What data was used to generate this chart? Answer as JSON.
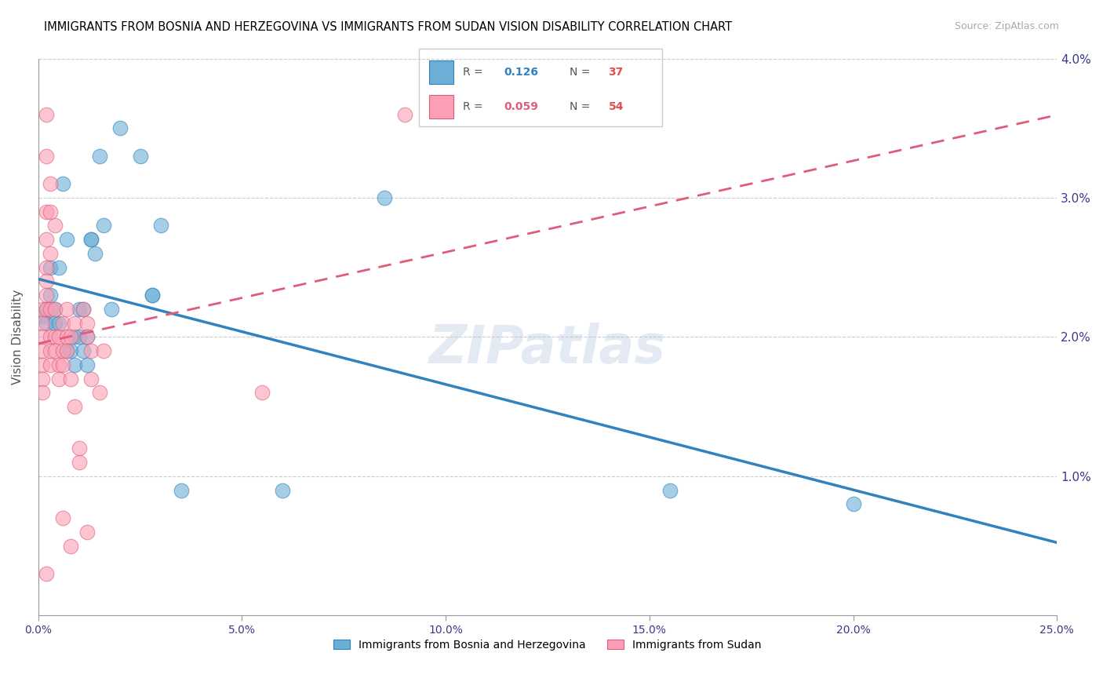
{
  "title": "IMMIGRANTS FROM BOSNIA AND HERZEGOVINA VS IMMIGRANTS FROM SUDAN VISION DISABILITY CORRELATION CHART",
  "source": "Source: ZipAtlas.com",
  "xlabel_bottom": "",
  "ylabel": "Vision Disability",
  "x_min": 0.0,
  "x_max": 0.25,
  "y_min": 0.0,
  "y_max": 0.04,
  "x_ticks": [
    0.0,
    0.05,
    0.1,
    0.15,
    0.2,
    0.25
  ],
  "x_tick_labels": [
    "0.0%",
    "5.0%",
    "10.0%",
    "15.0%",
    "20.0%",
    "25.0%"
  ],
  "y_ticks": [
    0.0,
    0.01,
    0.02,
    0.03,
    0.04
  ],
  "y_tick_labels": [
    "",
    "1.0%",
    "2.0%",
    "3.0%",
    "4.0%"
  ],
  "legend1_R": "0.126",
  "legend1_N": "37",
  "legend2_R": "0.059",
  "legend2_N": "54",
  "color_blue": "#6baed6",
  "color_pink": "#fa9fb5",
  "color_blue_line": "#3182bd",
  "color_pink_line": "#e05c7a",
  "watermark": "ZIPatlas",
  "bosnia_points": [
    [
      0.001,
      0.0215
    ],
    [
      0.002,
      0.021
    ],
    [
      0.002,
      0.022
    ],
    [
      0.003,
      0.025
    ],
    [
      0.003,
      0.023
    ],
    [
      0.004,
      0.021
    ],
    [
      0.004,
      0.022
    ],
    [
      0.005,
      0.021
    ],
    [
      0.005,
      0.025
    ],
    [
      0.006,
      0.031
    ],
    [
      0.007,
      0.027
    ],
    [
      0.007,
      0.019
    ],
    [
      0.008,
      0.019
    ],
    [
      0.009,
      0.02
    ],
    [
      0.009,
      0.018
    ],
    [
      0.01,
      0.02
    ],
    [
      0.01,
      0.022
    ],
    [
      0.011,
      0.019
    ],
    [
      0.011,
      0.022
    ],
    [
      0.012,
      0.018
    ],
    [
      0.012,
      0.02
    ],
    [
      0.013,
      0.027
    ],
    [
      0.013,
      0.027
    ],
    [
      0.014,
      0.026
    ],
    [
      0.015,
      0.033
    ],
    [
      0.016,
      0.028
    ],
    [
      0.018,
      0.022
    ],
    [
      0.02,
      0.035
    ],
    [
      0.025,
      0.033
    ],
    [
      0.028,
      0.023
    ],
    [
      0.028,
      0.023
    ],
    [
      0.03,
      0.028
    ],
    [
      0.035,
      0.009
    ],
    [
      0.06,
      0.009
    ],
    [
      0.085,
      0.03
    ],
    [
      0.155,
      0.009
    ],
    [
      0.2,
      0.008
    ]
  ],
  "sudan_points": [
    [
      0.001,
      0.022
    ],
    [
      0.001,
      0.021
    ],
    [
      0.001,
      0.02
    ],
    [
      0.001,
      0.019
    ],
    [
      0.001,
      0.018
    ],
    [
      0.001,
      0.017
    ],
    [
      0.001,
      0.016
    ],
    [
      0.002,
      0.036
    ],
    [
      0.002,
      0.033
    ],
    [
      0.002,
      0.029
    ],
    [
      0.002,
      0.027
    ],
    [
      0.002,
      0.025
    ],
    [
      0.002,
      0.024
    ],
    [
      0.002,
      0.023
    ],
    [
      0.002,
      0.022
    ],
    [
      0.003,
      0.031
    ],
    [
      0.003,
      0.029
    ],
    [
      0.003,
      0.026
    ],
    [
      0.003,
      0.022
    ],
    [
      0.003,
      0.02
    ],
    [
      0.003,
      0.019
    ],
    [
      0.003,
      0.018
    ],
    [
      0.004,
      0.028
    ],
    [
      0.004,
      0.022
    ],
    [
      0.004,
      0.02
    ],
    [
      0.004,
      0.019
    ],
    [
      0.005,
      0.02
    ],
    [
      0.005,
      0.018
    ],
    [
      0.005,
      0.017
    ],
    [
      0.006,
      0.021
    ],
    [
      0.006,
      0.019
    ],
    [
      0.006,
      0.018
    ],
    [
      0.007,
      0.022
    ],
    [
      0.007,
      0.02
    ],
    [
      0.007,
      0.019
    ],
    [
      0.008,
      0.02
    ],
    [
      0.008,
      0.017
    ],
    [
      0.009,
      0.021
    ],
    [
      0.009,
      0.015
    ],
    [
      0.01,
      0.012
    ],
    [
      0.01,
      0.011
    ],
    [
      0.011,
      0.022
    ],
    [
      0.012,
      0.021
    ],
    [
      0.012,
      0.02
    ],
    [
      0.013,
      0.019
    ],
    [
      0.013,
      0.017
    ],
    [
      0.015,
      0.016
    ],
    [
      0.016,
      0.019
    ],
    [
      0.055,
      0.016
    ],
    [
      0.09,
      0.036
    ],
    [
      0.006,
      0.007
    ],
    [
      0.008,
      0.005
    ],
    [
      0.012,
      0.006
    ],
    [
      0.002,
      0.003
    ]
  ]
}
